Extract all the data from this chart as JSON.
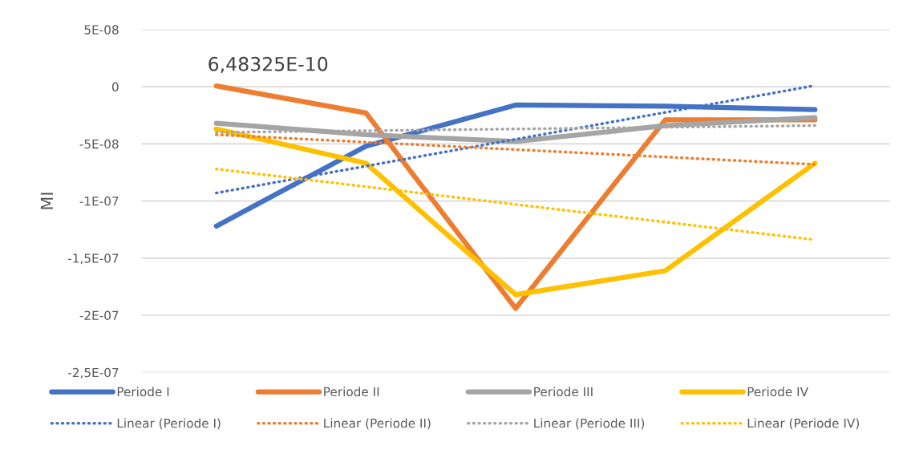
{
  "chart_data": {
    "type": "line",
    "ylabel": "MI",
    "categories": [
      null,
      null,
      null,
      null,
      null
    ],
    "series": [
      {
        "name": "Periode I",
        "color": "#4472c4",
        "values": [
          -1.22e-07,
          -5.2e-08,
          -1.6e-08,
          -1.7e-08,
          -2e-08
        ]
      },
      {
        "name": "Periode II",
        "color": "#ed7d31",
        "values": [
          6.48325e-10,
          -2.3e-08,
          -1.94e-07,
          -2.9e-08,
          -2.9e-08
        ],
        "value_labels": [
          "6,48325E-10",
          null,
          null,
          null,
          null
        ]
      },
      {
        "name": "Periode III",
        "color": "#a5a5a5",
        "values": [
          -3.2e-08,
          -4.2e-08,
          -4.8e-08,
          -3.4e-08,
          -2.7e-08
        ]
      },
      {
        "name": "Periode IV",
        "color": "#ffc000",
        "values": [
          -3.7e-08,
          -6.7e-08,
          -1.82e-07,
          -1.61e-07,
          -6.7e-08
        ]
      },
      {
        "name": "Linear (Periode I)",
        "color": "#4472c4",
        "line_style": "dotted",
        "values": [
          -9.3e-08,
          -6.95e-08,
          -4.6e-08,
          -2.25e-08,
          1e-09
        ]
      },
      {
        "name": "Linear (Periode II)",
        "color": "#ed7d31",
        "line_style": "dotted",
        "values": [
          -4.2e-08,
          -4.85e-08,
          -5.5e-08,
          -6.15e-08,
          -6.8e-08
        ]
      },
      {
        "name": "Linear (Periode III)",
        "color": "#a5a5a5",
        "line_style": "dotted",
        "values": [
          -4e-08,
          -3.85e-08,
          -3.7e-08,
          -3.55e-08,
          -3.4e-08
        ]
      },
      {
        "name": "Linear (Periode IV)",
        "color": "#ffc000",
        "line_style": "dotted",
        "values": [
          -7.2e-08,
          -8.75e-08,
          -1.03e-07,
          -1.185e-07,
          -1.34e-07
        ]
      }
    ],
    "ylim": [
      -2.5e-07,
      5e-08
    ],
    "yticks": [
      {
        "value": -2.5e-07,
        "label": "-2,5E-07"
      },
      {
        "value": -2e-07,
        "label": "-2E-07"
      },
      {
        "value": -1.5e-07,
        "label": "-1,5E-07"
      },
      {
        "value": -1e-07,
        "label": "-1E-07"
      },
      {
        "value": -5e-08,
        "label": "-5E-08"
      },
      {
        "value": 0,
        "label": "0"
      },
      {
        "value": 5e-08,
        "label": "5E-08"
      }
    ],
    "grid": "y",
    "legend": "bottom",
    "marker": "none",
    "line_style": "solid"
  }
}
